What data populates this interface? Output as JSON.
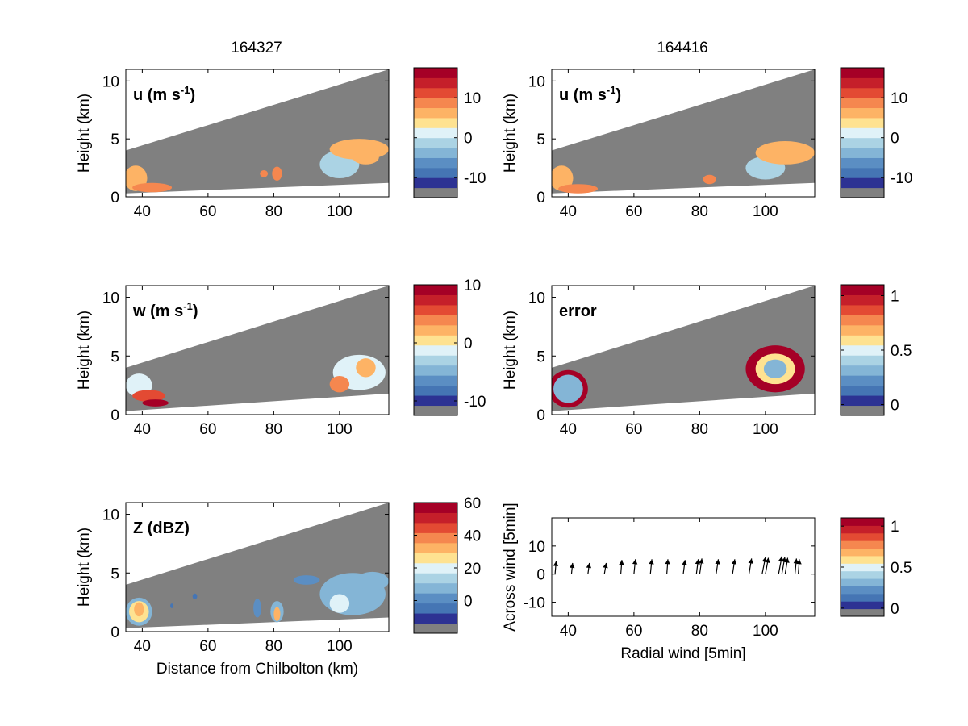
{
  "figure": {
    "column_titles": [
      "164327",
      "164416"
    ],
    "xlabel_bottom_left": "Distance from Chilbolton (km)"
  },
  "colors": {
    "background_gray": "#808080",
    "axes": "#000000",
    "colormap": [
      "#808080",
      "#2d3293",
      "#4575b4",
      "#5b8ec3",
      "#84b5d6",
      "#abd3e4",
      "#e0f2f8",
      "#fee291",
      "#fdb365",
      "#f5874f",
      "#e34a33",
      "#c51f2a",
      "#a50026"
    ]
  },
  "chart_data": [
    {
      "id": "u_164327",
      "type": "heatmap",
      "panel_label": "u (m s",
      "panel_label_sup": "-1",
      "panel_label_tail": ")",
      "ylabel": "Height (km)",
      "xlabel": "",
      "xlim": [
        35,
        115
      ],
      "ylim": [
        0,
        11
      ],
      "xticks": [
        40,
        60,
        80,
        100
      ],
      "yticks": [
        0,
        5,
        10
      ],
      "radar_wedge": {
        "x_start": 35,
        "x_end": 115,
        "top_start": 4.0,
        "top_end": 11.0,
        "bottom_start": 0.3,
        "bottom_end": 1.2
      },
      "colorbar": {
        "ticks": [
          -10,
          0,
          10
        ],
        "range": [
          -15,
          17.5
        ]
      },
      "echoes": [
        {
          "x": 38,
          "y": 1.6,
          "rx": 3.5,
          "ry": 1.1,
          "value": 6
        },
        {
          "x": 43,
          "y": 0.8,
          "rx": 6,
          "ry": 0.4,
          "value": 9
        },
        {
          "x": 81,
          "y": 2.0,
          "rx": 1.5,
          "ry": 0.6,
          "value": 9
        },
        {
          "x": 77,
          "y": 2.0,
          "rx": 1.2,
          "ry": 0.3,
          "value": 7
        },
        {
          "x": 100,
          "y": 2.8,
          "rx": 6,
          "ry": 1.2,
          "value": -3
        },
        {
          "x": 106,
          "y": 4.1,
          "rx": 9,
          "ry": 0.9,
          "value": 4
        },
        {
          "x": 108,
          "y": 3.4,
          "rx": 4,
          "ry": 0.6,
          "value": 6
        }
      ]
    },
    {
      "id": "u_164416",
      "type": "heatmap",
      "panel_label": "u (m s",
      "panel_label_sup": "-1",
      "panel_label_tail": ")",
      "ylabel": "Height (km)",
      "xlabel": "",
      "xlim": [
        35,
        115
      ],
      "ylim": [
        0,
        11
      ],
      "xticks": [
        40,
        60,
        80,
        100
      ],
      "yticks": [
        0,
        5,
        10
      ],
      "radar_wedge": {
        "x_start": 35,
        "x_end": 115,
        "top_start": 4.0,
        "top_end": 11.0,
        "bottom_start": 0.3,
        "bottom_end": 1.2
      },
      "colorbar": {
        "ticks": [
          -10,
          0,
          10
        ],
        "range": [
          -15,
          17.5
        ]
      },
      "echoes": [
        {
          "x": 38,
          "y": 1.6,
          "rx": 3.5,
          "ry": 1.1,
          "value": 6
        },
        {
          "x": 43,
          "y": 0.7,
          "rx": 6,
          "ry": 0.4,
          "value": 9
        },
        {
          "x": 83,
          "y": 1.5,
          "rx": 2,
          "ry": 0.4,
          "value": 9
        },
        {
          "x": 100,
          "y": 2.5,
          "rx": 6,
          "ry": 1.0,
          "value": -3
        },
        {
          "x": 106,
          "y": 3.8,
          "rx": 9,
          "ry": 1.0,
          "value": 4
        }
      ]
    },
    {
      "id": "w_164327",
      "type": "heatmap",
      "panel_label": "w (m s",
      "panel_label_sup": "-1",
      "panel_label_tail": ")",
      "ylabel": "Height (km)",
      "xlabel": "",
      "xlim": [
        35,
        115
      ],
      "ylim": [
        0,
        11
      ],
      "xticks": [
        40,
        60,
        80,
        100
      ],
      "yticks": [
        0,
        5,
        10
      ],
      "radar_wedge": {
        "x_start": 35,
        "x_end": 115,
        "top_start": 4.0,
        "top_end": 11.0,
        "bottom_start": 0.3,
        "bottom_end": 1.8
      },
      "colorbar": {
        "ticks": [
          -10,
          0,
          10
        ],
        "range": [
          -12.5,
          10
        ]
      },
      "echoes": [
        {
          "x": 39,
          "y": 2.5,
          "rx": 4,
          "ry": 1.0,
          "value": -3
        },
        {
          "x": 42,
          "y": 1.6,
          "rx": 5,
          "ry": 0.5,
          "value": 6
        },
        {
          "x": 44,
          "y": 1.0,
          "rx": 4,
          "ry": 0.3,
          "value": 9
        },
        {
          "x": 106,
          "y": 3.6,
          "rx": 8,
          "ry": 1.5,
          "value": -3
        },
        {
          "x": 100,
          "y": 2.6,
          "rx": 3,
          "ry": 0.7,
          "value": 3
        },
        {
          "x": 108,
          "y": 4.0,
          "rx": 3,
          "ry": 0.8,
          "value": 1
        }
      ]
    },
    {
      "id": "error_164416",
      "type": "heatmap",
      "panel_label": "error",
      "ylabel": "Height (km)",
      "xlabel": "",
      "xlim": [
        35,
        115
      ],
      "ylim": [
        0,
        11
      ],
      "xticks": [
        40,
        60,
        80,
        100
      ],
      "yticks": [
        0,
        5,
        10
      ],
      "radar_wedge": {
        "x_start": 35,
        "x_end": 115,
        "top_start": 4.0,
        "top_end": 11.0,
        "bottom_start": 0.3,
        "bottom_end": 1.8
      },
      "colorbar": {
        "ticks": [
          0,
          0.5,
          1
        ],
        "range": [
          -0.1,
          1.1
        ]
      },
      "echoes": [
        {
          "x": 40,
          "y": 2.2,
          "rx": 6,
          "ry": 1.6,
          "value": 1.05
        },
        {
          "x": 40,
          "y": 2.2,
          "rx": 4.5,
          "ry": 1.2,
          "value": 0.2
        },
        {
          "x": 103,
          "y": 3.9,
          "rx": 9,
          "ry": 2.0,
          "value": 1.05
        },
        {
          "x": 103,
          "y": 3.9,
          "rx": 6,
          "ry": 1.3,
          "value": 0.55
        },
        {
          "x": 103,
          "y": 3.9,
          "rx": 3.5,
          "ry": 0.8,
          "value": 0.25
        }
      ]
    },
    {
      "id": "Z_164327",
      "type": "heatmap",
      "panel_label": "Z (dBZ)",
      "ylabel": "Height (km)",
      "xlabel": "Distance from Chilbolton (km)",
      "xlim": [
        35,
        115
      ],
      "ylim": [
        0,
        11
      ],
      "xticks": [
        40,
        60,
        80,
        100
      ],
      "yticks": [
        0,
        5,
        10
      ],
      "radar_wedge": {
        "x_start": 35,
        "x_end": 115,
        "top_start": 4.0,
        "top_end": 11.0,
        "bottom_start": 0.3,
        "bottom_end": 1.2
      },
      "colorbar": {
        "ticks": [
          0,
          20,
          40,
          60
        ],
        "range": [
          -20,
          60
        ]
      },
      "echoes": [
        {
          "x": 39,
          "y": 1.7,
          "rx": 4,
          "ry": 1.2,
          "value": 5
        },
        {
          "x": 39,
          "y": 1.7,
          "rx": 3,
          "ry": 0.9,
          "value": 20
        },
        {
          "x": 39,
          "y": 1.9,
          "rx": 1.5,
          "ry": 0.6,
          "value": 27
        },
        {
          "x": 81,
          "y": 1.7,
          "rx": 2,
          "ry": 0.9,
          "value": 5
        },
        {
          "x": 81,
          "y": 1.5,
          "rx": 1,
          "ry": 0.6,
          "value": 27
        },
        {
          "x": 75,
          "y": 2.0,
          "rx": 1.2,
          "ry": 0.8,
          "value": -5
        },
        {
          "x": 104,
          "y": 3.2,
          "rx": 10,
          "ry": 1.8,
          "value": 0
        },
        {
          "x": 100,
          "y": 2.4,
          "rx": 3,
          "ry": 0.8,
          "value": 18
        },
        {
          "x": 110,
          "y": 4.3,
          "rx": 5,
          "ry": 0.8,
          "value": 5
        },
        {
          "x": 90,
          "y": 4.4,
          "rx": 4,
          "ry": 0.4,
          "value": -5
        },
        {
          "x": 56,
          "y": 3.0,
          "rx": 0.7,
          "ry": 0.25,
          "value": -10
        },
        {
          "x": 49,
          "y": 2.2,
          "rx": 0.5,
          "ry": 0.2,
          "value": -10
        }
      ]
    },
    {
      "id": "wind_arrows",
      "type": "quiver",
      "ylabel": "Across wind [5min]",
      "xlabel": "Radial wind [5min]",
      "xlim": [
        35,
        115
      ],
      "ylim": [
        -15,
        20
      ],
      "xticks": [
        40,
        60,
        80,
        100
      ],
      "yticks": [
        -10,
        0,
        10
      ],
      "colorbar": {
        "ticks": [
          0,
          0.5,
          1
        ],
        "range": [
          -0.1,
          1.1
        ]
      },
      "arrows": [
        {
          "x": 36,
          "y": 0,
          "u": 0.3,
          "v": 3.5
        },
        {
          "x": 41,
          "y": 0,
          "u": 0.3,
          "v": 3.0
        },
        {
          "x": 46,
          "y": 0,
          "u": 0.4,
          "v": 3.0
        },
        {
          "x": 51,
          "y": 0,
          "u": 0.5,
          "v": 3.0
        },
        {
          "x": 56,
          "y": 0,
          "u": 0.3,
          "v": 3.8
        },
        {
          "x": 60,
          "y": 0,
          "u": 0.4,
          "v": 4.0
        },
        {
          "x": 65,
          "y": 0,
          "u": 0.4,
          "v": 4.0
        },
        {
          "x": 70,
          "y": 0,
          "u": 0.3,
          "v": 4.0
        },
        {
          "x": 75,
          "y": 0,
          "u": 0.5,
          "v": 3.8
        },
        {
          "x": 79,
          "y": 0,
          "u": 0.5,
          "v": 4.0
        },
        {
          "x": 80,
          "y": 0,
          "u": 0.6,
          "v": 4.2
        },
        {
          "x": 85,
          "y": 0,
          "u": 0.6,
          "v": 4.0
        },
        {
          "x": 90,
          "y": 0,
          "u": 0.6,
          "v": 4.0
        },
        {
          "x": 95,
          "y": 0,
          "u": 0.7,
          "v": 4.2
        },
        {
          "x": 99,
          "y": 0,
          "u": 0.9,
          "v": 4.6
        },
        {
          "x": 100,
          "y": 0,
          "u": 0.8,
          "v": 4.4
        },
        {
          "x": 104,
          "y": 0,
          "u": 0.9,
          "v": 4.8
        },
        {
          "x": 105,
          "y": 0,
          "u": 0.8,
          "v": 4.6
        },
        {
          "x": 106,
          "y": 0,
          "u": 0.7,
          "v": 4.4
        },
        {
          "x": 109,
          "y": 0,
          "u": 0.4,
          "v": 4.2
        },
        {
          "x": 110,
          "y": 0,
          "u": 0.3,
          "v": 4.0
        }
      ]
    }
  ]
}
